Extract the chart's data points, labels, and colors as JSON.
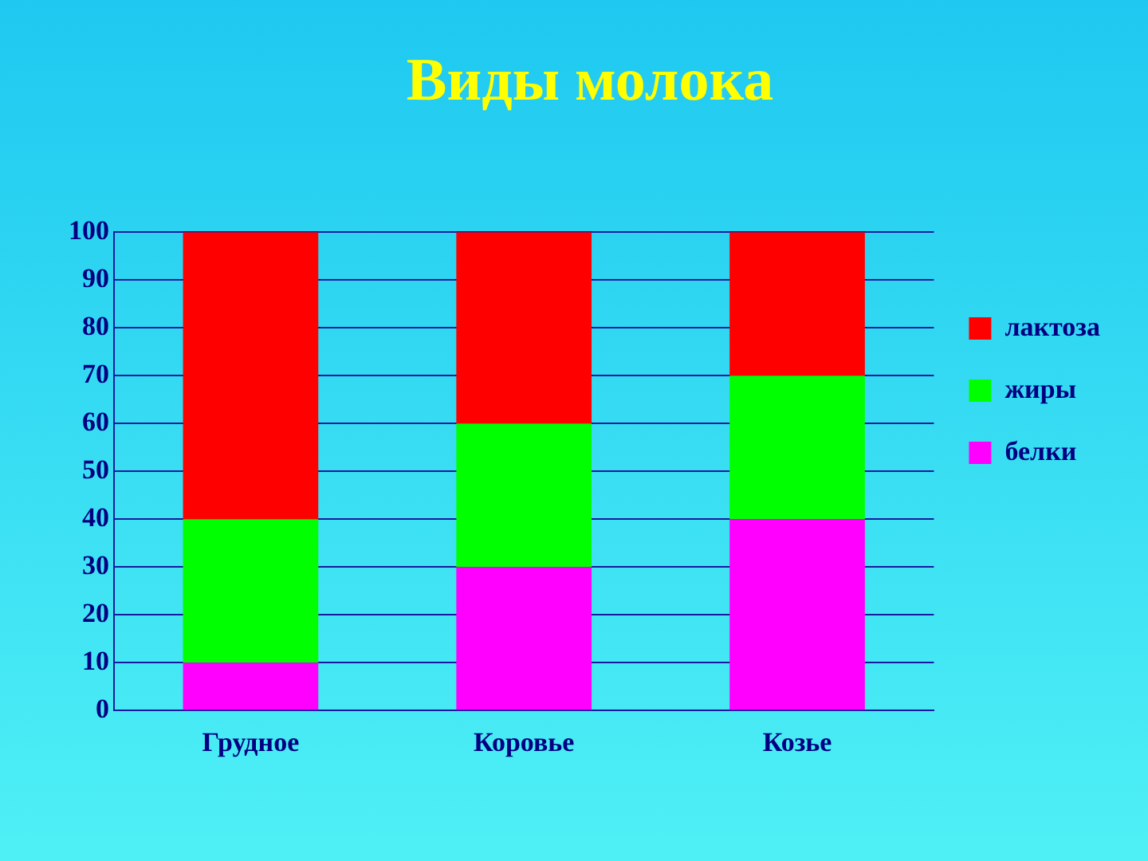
{
  "chart_data": {
    "type": "bar",
    "title": "Виды молока",
    "stacked": true,
    "categories": [
      "Грудное",
      "Коровье",
      "Козье"
    ],
    "series": [
      {
        "name": "белки",
        "color": "#ff00ff",
        "values": [
          10,
          30,
          40
        ]
      },
      {
        "name": "жиры",
        "color": "#00ff00",
        "values": [
          30,
          30,
          30
        ]
      },
      {
        "name": "лактоза",
        "color": "#ff0000",
        "values": [
          60,
          40,
          30
        ]
      }
    ],
    "ylim": [
      0,
      100
    ],
    "yticks": [
      0,
      10,
      20,
      30,
      40,
      50,
      60,
      70,
      80,
      90,
      100
    ],
    "grid": "y",
    "legend": "right"
  }
}
